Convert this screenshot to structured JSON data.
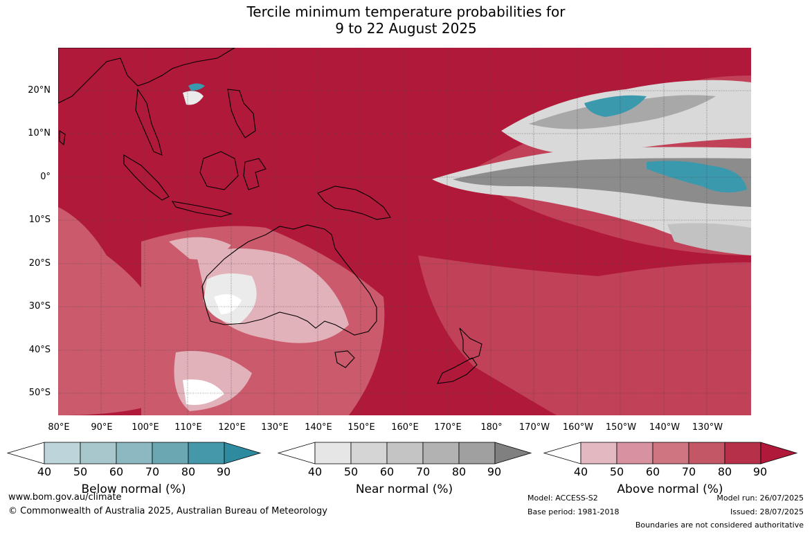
{
  "title_line1": "Tercile minimum temperature probabilities for",
  "title_line2": "9 to 22 August 2025",
  "lat_labels": [
    "20°N",
    "10°N",
    "0°",
    "10°S",
    "20°S",
    "30°S",
    "40°S",
    "50°S"
  ],
  "lon_labels": [
    "80°E",
    "90°E",
    "100°E",
    "110°E",
    "120°E",
    "130°E",
    "140°E",
    "150°E",
    "160°E",
    "170°E",
    "180°",
    "170°W",
    "160°W",
    "150°W",
    "140°W",
    "130°W"
  ],
  "colorbars": [
    {
      "title": "Below normal (%)",
      "ticks": [
        "40",
        "50",
        "60",
        "70",
        "80",
        "90"
      ],
      "colors": [
        "#ffffff",
        "#bcd4da",
        "#a7c7cc",
        "#8bb8c1",
        "#6aa7b3",
        "#4598a9",
        "#2e8a9e"
      ]
    },
    {
      "title": "Near normal (%)",
      "ticks": [
        "40",
        "50",
        "60",
        "70",
        "80",
        "90"
      ],
      "colors": [
        "#ffffff",
        "#e6e6e6",
        "#d5d5d5",
        "#c4c4c4",
        "#b2b2b2",
        "#a0a0a0",
        "#808080"
      ]
    },
    {
      "title": "Above normal (%)",
      "ticks": [
        "40",
        "50",
        "60",
        "70",
        "80",
        "90"
      ],
      "colors": [
        "#ffffff",
        "#e4b8c1",
        "#d8919e",
        "#ce7581",
        "#c35766",
        "#b73049",
        "#b0193a"
      ]
    }
  ],
  "map_colors": {
    "above_90": "#b0193a",
    "above_80": "#bf3550",
    "above_70": "#ca5a6c",
    "above_60": "#d58590",
    "above_50": "#e2b2ba",
    "near_40": "#ebebeb",
    "near_60": "#c2c2c2",
    "near_80": "#8c8c8c",
    "below_80": "#3b99ad",
    "land_outline": "#000000",
    "grid": "#444444"
  },
  "footer": {
    "url": "www.bom.gov.au/climate",
    "copyright": "© Commonwealth of Australia 2025, Australian Bureau of Meteorology",
    "model": "Model: ACCESS-S2",
    "base_period": "Base period: 1981-2018",
    "model_run": "Model run: 26/07/2025",
    "issued": "Issued: 28/07/2025",
    "disclaimer": "Boundaries are not considered authoritative"
  }
}
